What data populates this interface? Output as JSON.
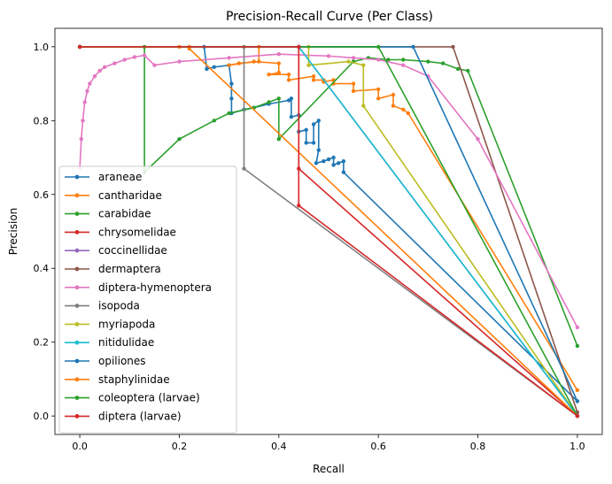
{
  "chart_data": {
    "type": "line",
    "title": "Precision-Recall Curve (Per Class)",
    "xlabel": "Recall",
    "ylabel": "Precision",
    "xlim": [
      -0.05,
      1.05
    ],
    "ylim": [
      -0.05,
      1.05
    ],
    "xticks": [
      "0.0",
      "0.2",
      "0.4",
      "0.6",
      "0.8",
      "1.0"
    ],
    "yticks": [
      "0.0",
      "0.2",
      "0.4",
      "0.6",
      "0.8",
      "1.0"
    ],
    "grid": false,
    "legend_position": "lower-left",
    "series": [
      {
        "name": "araneae",
        "color": "#1f77b4",
        "points": [
          [
            0,
            1.0
          ],
          [
            0.25,
            1.0
          ],
          [
            0.255,
            0.94
          ],
          [
            0.27,
            0.945
          ],
          [
            0.3,
            0.95
          ],
          [
            0.305,
            0.9
          ],
          [
            0.305,
            0.86
          ],
          [
            0.305,
            0.82
          ],
          [
            0.33,
            0.83
          ],
          [
            0.35,
            0.835
          ],
          [
            0.38,
            0.845
          ],
          [
            0.42,
            0.855
          ],
          [
            0.425,
            0.86
          ],
          [
            0.425,
            0.81
          ],
          [
            0.44,
            0.815
          ],
          [
            0.44,
            0.77
          ],
          [
            0.455,
            0.775
          ],
          [
            0.455,
            0.74
          ],
          [
            0.47,
            0.74
          ],
          [
            0.47,
            0.79
          ],
          [
            0.48,
            0.8
          ],
          [
            0.48,
            0.72
          ],
          [
            0.475,
            0.685
          ],
          [
            0.49,
            0.69
          ],
          [
            0.5,
            0.695
          ],
          [
            0.51,
            0.7
          ],
          [
            0.51,
            0.68
          ],
          [
            0.52,
            0.685
          ],
          [
            0.53,
            0.69
          ],
          [
            0.53,
            0.66
          ],
          [
            1.0,
            0.04
          ]
        ]
      },
      {
        "name": "cantharidae",
        "color": "#ff7f0e",
        "points": [
          [
            0,
            1.0
          ],
          [
            0.2,
            1.0
          ],
          [
            0.36,
            1.0
          ],
          [
            0.36,
            0.96
          ],
          [
            0.32,
            0.955
          ],
          [
            0.3,
            0.95
          ],
          [
            0.35,
            0.96
          ],
          [
            0.4,
            0.955
          ],
          [
            0.4,
            0.93
          ],
          [
            0.38,
            0.925
          ],
          [
            0.42,
            0.925
          ],
          [
            0.42,
            0.91
          ],
          [
            0.47,
            0.92
          ],
          [
            0.47,
            0.91
          ],
          [
            0.49,
            0.91
          ],
          [
            0.49,
            0.905
          ],
          [
            0.51,
            0.91
          ],
          [
            0.51,
            0.9
          ],
          [
            0.55,
            0.9
          ],
          [
            0.55,
            0.88
          ],
          [
            0.6,
            0.885
          ],
          [
            0.6,
            0.86
          ],
          [
            0.63,
            0.87
          ],
          [
            0.63,
            0.84
          ],
          [
            0.65,
            0.83
          ],
          [
            0.66,
            0.82
          ],
          [
            1.0,
            0.07
          ]
        ]
      },
      {
        "name": "carabidae",
        "color": "#2ca02c",
        "points": [
          [
            0,
            1.0
          ],
          [
            0.13,
            1.0
          ],
          [
            0.13,
            0.66
          ],
          [
            0.2,
            0.75
          ],
          [
            0.27,
            0.8
          ],
          [
            0.3,
            0.82
          ],
          [
            0.35,
            0.835
          ],
          [
            0.38,
            0.85
          ],
          [
            0.4,
            0.86
          ],
          [
            0.4,
            0.75
          ],
          [
            0.55,
            0.96
          ],
          [
            0.58,
            0.97
          ],
          [
            0.62,
            0.965
          ],
          [
            0.65,
            0.965
          ],
          [
            0.7,
            0.96
          ],
          [
            0.73,
            0.955
          ],
          [
            0.76,
            0.94
          ],
          [
            0.78,
            0.935
          ],
          [
            1.0,
            0.19
          ]
        ]
      },
      {
        "name": "chrysomelidae",
        "color": "#d62728",
        "points": [
          [
            0,
            1.0
          ],
          [
            0.44,
            1.0
          ],
          [
            0.44,
            0.67
          ],
          [
            1.0,
            0.0
          ]
        ]
      },
      {
        "name": "coccinellidae",
        "color": "#9467bd",
        "points": [
          [
            0,
            1.0
          ],
          [
            0.44,
            1.0
          ],
          [
            1.0,
            0.0
          ]
        ]
      },
      {
        "name": "dermaptera",
        "color": "#8c564b",
        "points": [
          [
            0,
            1.0
          ],
          [
            0.75,
            1.0
          ],
          [
            1.0,
            0.01
          ]
        ]
      },
      {
        "name": "diptera-hymenoptera",
        "color": "#e377c2",
        "points": [
          [
            0,
            0.67
          ],
          [
            0.003,
            0.75
          ],
          [
            0.006,
            0.8
          ],
          [
            0.01,
            0.85
          ],
          [
            0.015,
            0.88
          ],
          [
            0.02,
            0.9
          ],
          [
            0.03,
            0.92
          ],
          [
            0.04,
            0.935
          ],
          [
            0.05,
            0.945
          ],
          [
            0.07,
            0.955
          ],
          [
            0.09,
            0.965
          ],
          [
            0.11,
            0.972
          ],
          [
            0.13,
            0.977
          ],
          [
            0.15,
            0.95
          ],
          [
            0.2,
            0.96
          ],
          [
            0.3,
            0.97
          ],
          [
            0.4,
            0.98
          ],
          [
            0.5,
            0.975
          ],
          [
            0.55,
            0.97
          ],
          [
            0.6,
            0.965
          ],
          [
            0.65,
            0.95
          ],
          [
            0.7,
            0.92
          ],
          [
            0.8,
            0.75
          ],
          [
            1.0,
            0.24
          ]
        ]
      },
      {
        "name": "isopoda",
        "color": "#7f7f7f",
        "points": [
          [
            0,
            1.0
          ],
          [
            0.33,
            1.0
          ],
          [
            0.33,
            0.67
          ],
          [
            1.0,
            0.0
          ]
        ]
      },
      {
        "name": "myriapoda",
        "color": "#bcbd22",
        "points": [
          [
            0,
            1.0
          ],
          [
            0.46,
            1.0
          ],
          [
            0.46,
            0.95
          ],
          [
            0.54,
            0.96
          ],
          [
            0.57,
            0.95
          ],
          [
            0.57,
            0.84
          ],
          [
            1.0,
            0.0
          ]
        ]
      },
      {
        "name": "nitidulidae",
        "color": "#17becf",
        "points": [
          [
            0,
            1.0
          ],
          [
            0.44,
            1.0
          ],
          [
            1.0,
            0.0
          ]
        ]
      },
      {
        "name": "opiliones",
        "color": "#1f77b4",
        "points": [
          [
            0,
            1.0
          ],
          [
            0.67,
            1.0
          ],
          [
            1.0,
            0.04
          ]
        ]
      },
      {
        "name": "staphylinidae",
        "color": "#ff7f0e",
        "points": [
          [
            0,
            1.0
          ],
          [
            0.22,
            1.0
          ],
          [
            0.22,
            0.995
          ],
          [
            1.0,
            0.0
          ]
        ]
      },
      {
        "name": "coleoptera (larvae)",
        "color": "#2ca02c",
        "points": [
          [
            0,
            1.0
          ],
          [
            0.6,
            1.0
          ],
          [
            1.0,
            0.0
          ]
        ]
      },
      {
        "name": "diptera (larvae)",
        "color": "#d62728",
        "points": [
          [
            0,
            1.0
          ],
          [
            0.44,
            1.0
          ],
          [
            0.44,
            0.57
          ],
          [
            1.0,
            0.0
          ]
        ]
      }
    ]
  }
}
